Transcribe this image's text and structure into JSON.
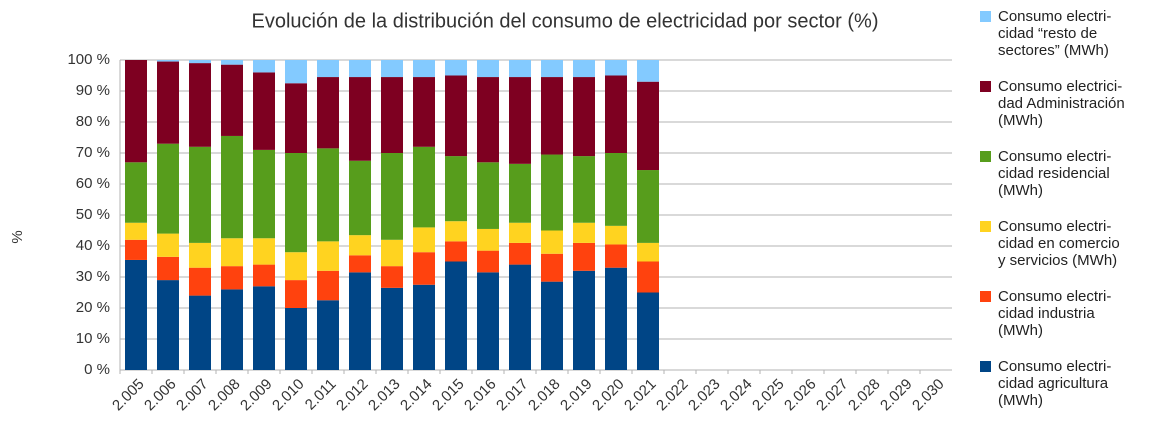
{
  "chart_data": {
    "type": "stacked_bar",
    "title": "Evolución de la distribución del consumo de electricidad por sector (%)",
    "y_label": "%",
    "categories": [
      "2.005",
      "2.006",
      "2.007",
      "2.008",
      "2.009",
      "2.010",
      "2.011",
      "2.012",
      "2.013",
      "2.014",
      "2.015",
      "2.016",
      "2.017",
      "2.018",
      "2.019",
      "2.020",
      "2.021",
      "2.022",
      "2.023",
      "2.024",
      "2.025",
      "2.026",
      "2.027",
      "2.028",
      "2.029",
      "2.030"
    ],
    "series": [
      {
        "name": "Consumo electri-\ncidad agricultura\n(MWh)",
        "color": "#004586",
        "values": [
          35.5,
          29,
          24,
          26,
          27,
          20,
          22.5,
          31.5,
          26.5,
          27.5,
          35,
          31.5,
          34,
          28.5,
          32,
          33,
          25,
          null,
          null,
          null,
          null,
          null,
          null,
          null,
          null,
          null
        ]
      },
      {
        "name": "Consumo electri-\ncidad industria\n(MWh)",
        "color": "#ff420e",
        "values": [
          6.5,
          7.5,
          9,
          7.5,
          7,
          9,
          9.5,
          5.5,
          7,
          10.5,
          6.5,
          7,
          7,
          9,
          9,
          7.5,
          10,
          null,
          null,
          null,
          null,
          null,
          null,
          null,
          null,
          null
        ]
      },
      {
        "name": "Consumo electri-\ncidad en comercio\ny servicios (MWh)",
        "color": "#ffd320",
        "values": [
          5.5,
          7.5,
          8,
          9,
          8.5,
          9,
          9.5,
          6.5,
          8.5,
          8,
          6.5,
          7,
          6.5,
          7.5,
          6.5,
          6,
          6,
          null,
          null,
          null,
          null,
          null,
          null,
          null,
          null,
          null
        ]
      },
      {
        "name": "Consumo electri-\ncidad residencial\n(MWh)",
        "color": "#579d1c",
        "values": [
          19.5,
          29,
          31,
          33,
          28.5,
          32,
          30,
          24,
          28,
          26,
          21,
          21.5,
          19,
          24.5,
          21.5,
          23.5,
          23.5,
          null,
          null,
          null,
          null,
          null,
          null,
          null,
          null,
          null
        ]
      },
      {
        "name": "Consumo electrici-\ndad Administración\n(MWh)",
        "color": "#7e0021",
        "values": [
          33,
          26.5,
          27,
          23,
          25,
          22.5,
          23,
          27,
          24.5,
          22.5,
          26,
          27.5,
          28,
          25,
          25.5,
          25,
          28.5,
          null,
          null,
          null,
          null,
          null,
          null,
          null,
          null,
          null
        ]
      },
      {
        "name": "Consumo electri-\ncidad “resto de\nsectores” (MWh)",
        "color": "#83caff",
        "values": [
          0,
          0.5,
          1,
          1.5,
          4,
          7.5,
          5.5,
          5.5,
          5.5,
          5.5,
          5,
          5.5,
          5.5,
          5.5,
          5.5,
          5,
          7,
          null,
          null,
          null,
          null,
          null,
          null,
          null,
          null,
          null
        ]
      }
    ],
    "ylim": [
      0,
      100
    ],
    "yticks": [
      {
        "value": 0,
        "label": "0 %"
      },
      {
        "value": 10,
        "label": "10 %"
      },
      {
        "value": 20,
        "label": "20 %"
      },
      {
        "value": 30,
        "label": "30 %"
      },
      {
        "value": 40,
        "label": "40 %"
      },
      {
        "value": 50,
        "label": "50 %"
      },
      {
        "value": 60,
        "label": "60 %"
      },
      {
        "value": 70,
        "label": "70 %"
      },
      {
        "value": 80,
        "label": "80 %"
      },
      {
        "value": 90,
        "label": "90 %"
      },
      {
        "value": 100,
        "label": "100 %"
      }
    ],
    "grid": true,
    "legend": "right"
  }
}
